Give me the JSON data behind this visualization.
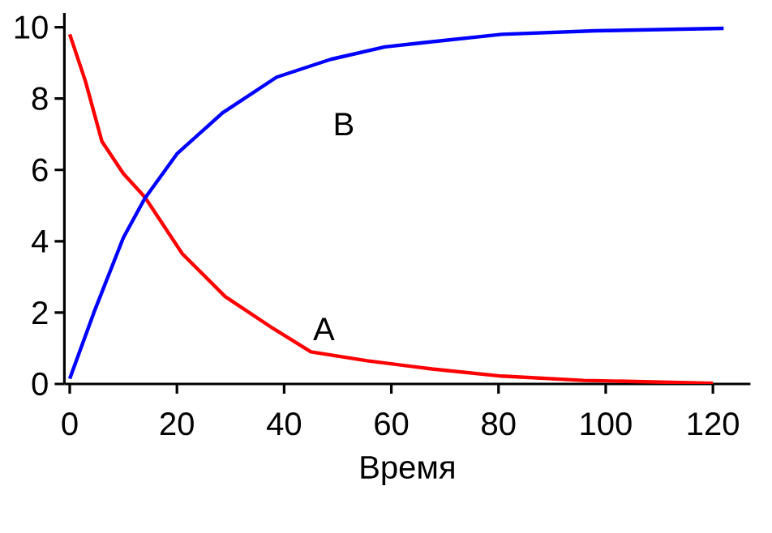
{
  "chart_data": {
    "type": "line",
    "xlabel": "Время",
    "xlim": [
      -1,
      127
    ],
    "ylim": [
      0,
      10.4
    ],
    "xticks": [
      0,
      20,
      40,
      60,
      80,
      100,
      120
    ],
    "yticks": [
      0,
      2,
      4,
      6,
      8,
      10
    ],
    "marker": "none",
    "line_style": "solid",
    "series": [
      {
        "name": "A",
        "color": "#ff0000",
        "x": [
          0,
          2.9,
          6,
          10,
          14,
          21,
          29,
          38,
          45,
          55.5,
          67.6,
          80.6,
          95.8,
          120
        ],
        "values": [
          9.8,
          8.5,
          6.8,
          5.9,
          5.24,
          3.65,
          2.45,
          1.55,
          0.9,
          0.65,
          0.42,
          0.22,
          0.1,
          0.02
        ]
      },
      {
        "name": "B",
        "color": "#0000ff",
        "x": [
          0,
          4.5,
          10,
          14,
          20,
          28.5,
          38.6,
          48.7,
          58.8,
          65.5,
          80.6,
          98,
          122
        ],
        "values": [
          0.15,
          2,
          4.1,
          5.2,
          6.45,
          7.6,
          8.6,
          9.1,
          9.45,
          9.56,
          9.8,
          9.9,
          9.97
        ]
      }
    ]
  }
}
